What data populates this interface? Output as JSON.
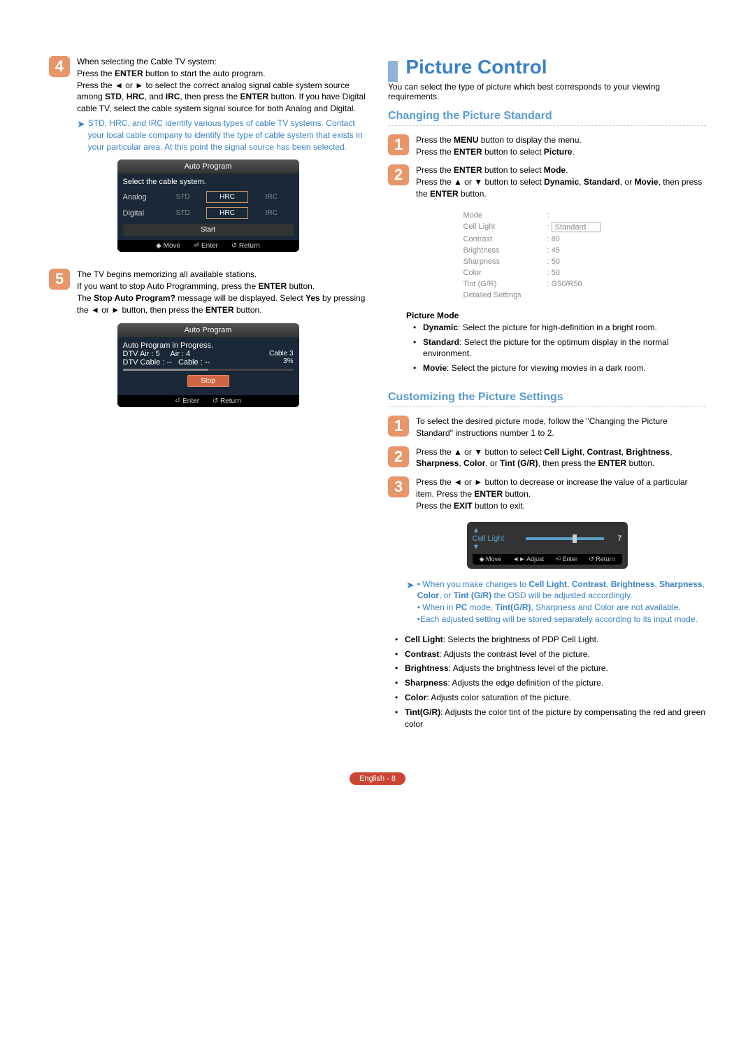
{
  "left": {
    "step4": {
      "num": "4",
      "p1a": "When selecting the Cable TV system:",
      "p1b": "Press the ",
      "enter": "ENTER",
      "p1c": " button to start the auto program.",
      "p2a": "Press the ◄ or ► to select the correct analog signal cable system source among ",
      "std": "STD",
      "hrc": "HRC",
      "p2and": ", and ",
      "irc": "IRC",
      "p2b": ", then press the ",
      "p2c": " button. If you have Digital cable TV, select the cable system signal source for both Analog and Digital.",
      "note": "STD, HRC, and IRC identify various types of cable TV systems. Contact your local cable company to identify the type of cable system that exists in your particular area. At this point the signal source has been selected."
    },
    "ui1": {
      "title": "Auto Program",
      "subtitle": "Select the cable system.",
      "row1": "Analog",
      "row2": "Digital",
      "std": "STD",
      "hrc": "HRC",
      "irc": "IRC",
      "start": "Start",
      "footer": {
        "move": "◆ Move",
        "enter": "⏎ Enter",
        "return": "↺ Return"
      }
    },
    "step5": {
      "num": "5",
      "p1": "The TV begins memorizing all available stations.",
      "p2a": "If you want to stop Auto Programming, press the ",
      "p2b": " button.",
      "p3a": "The ",
      "stopmsg": "Stop Auto Program?",
      "p3b": " message will be displayed. Select ",
      "yes": "Yes",
      "p3c": " by pressing the ◄ or ► button, then press the ",
      "p3d": " button."
    },
    "ui2": {
      "title": "Auto Program",
      "l1": "Auto Program in Progress.",
      "l2a": "DTV Air : 5",
      "l2b": "Air : 4",
      "l3a": "DTV Cable : --",
      "l3b": "Cable : --",
      "r1": "Cable 3",
      "r2": "3%",
      "stop": "Stop",
      "footer": {
        "enter": "⏎ Enter",
        "return": "↺ Return"
      }
    }
  },
  "right": {
    "title": "Picture Control",
    "intro": "You can select the type of picture which best corresponds to your viewing requirements.",
    "sec1": {
      "heading": "Changing the Picture Standard",
      "s1": {
        "num": "1",
        "a": "Press the ",
        "menu": "MENU",
        "b": " button to display the menu.",
        "c": "Press the ",
        "enter": "ENTER",
        "d": " button to select ",
        "picture": "Picture",
        "e": "."
      },
      "s2": {
        "num": "2",
        "a": "Press the ",
        "enter": "ENTER",
        "b": " button to select ",
        "mode": "Mode",
        "dot": ".",
        "c": "Press the ▲ or ▼ button to select ",
        "dyn": "Dynamic",
        "comma": ", ",
        "std": "Standard",
        "or": ", or ",
        "mov": "Movie",
        "d": ", then press the ",
        "e": " button."
      }
    },
    "settings": {
      "rows": [
        {
          "k": "Mode",
          "v": ":"
        },
        {
          "k": "Cell Light",
          "v": ": Standard",
          "sel": true
        },
        {
          "k": "Contrast",
          "v": ": 80"
        },
        {
          "k": "Brightness",
          "v": ": 45"
        },
        {
          "k": "Sharpness",
          "v": ": 50"
        },
        {
          "k": "Color",
          "v": ": 50"
        },
        {
          "k": "Tint (G/R)",
          "v": ": G50/R50"
        },
        {
          "k": "Detailed Settings",
          "v": ""
        }
      ]
    },
    "pmode": {
      "heading": "Picture Mode",
      "items": [
        {
          "b": "Dynamic",
          "t": ": Select the picture for high-definition in a bright room."
        },
        {
          "b": "Standard",
          "t": ": Select the picture for the optimum display in the normal environment."
        },
        {
          "b": "Movie",
          "t": ": Select the picture for viewing movies in a dark room."
        }
      ]
    },
    "sec2": {
      "heading": "Customizing the Picture Settings",
      "s1": {
        "num": "1",
        "t": "To select the desired picture mode, follow the \"Changing the Picture Standard\" instructions number 1 to 2."
      },
      "s2": {
        "num": "2",
        "a": "Press the ▲ or ▼ button to select ",
        "cell": "Cell Light",
        "c": ", ",
        "con": "Contrast",
        "br": "Brightness",
        "sh": "Sharpness",
        "col": "Color",
        "or": ", or ",
        "tint": "Tint (G/R)",
        "b": ", then press the ",
        "enter": "ENTER",
        "d": " button."
      },
      "s3": {
        "num": "3",
        "a": "Press the ◄ or ► button to decrease or increase the value of a particular item. Press the ",
        "enter": "ENTER",
        "b": " button.",
        "c": "Press the ",
        "exit": "EXIT",
        "d": " button to exit."
      }
    },
    "adjust": {
      "label": "Cell Light",
      "value": "7",
      "footer": {
        "move": "◆ Move",
        "adj": "◄► Adjust",
        "enter": "⏎ Enter",
        "ret": "↺ Return"
      }
    },
    "notes": {
      "l1a": "When you make changes to ",
      "l1b": "Cell Light",
      "l1c": ", ",
      "l1d": "Contrast",
      "l1e": "Brightness",
      "l1f": "Sharpness",
      "l1g": "Color",
      "l1h": ", or ",
      "l1i": "Tint (G/R)",
      "l1j": " the OSD will be adjusted accordingly.",
      "l2a": "When in ",
      "l2b": "PC",
      "l2c": " mode, ",
      "l2d": "Tint(G/R)",
      "l2e": ", Sharpness and Color are not available.",
      "l3": "Each adjusted setting will be stored separately according to its input mode."
    },
    "defs": [
      {
        "b": "Cell Light",
        "t": ": Selects the brightness of PDP Cell Light."
      },
      {
        "b": "Contrast",
        "t": ": Adjusts the contrast level of the picture."
      },
      {
        "b": "Brightness",
        "t": ": Adjusts the brightness level of the picture."
      },
      {
        "b": "Sharpness",
        "t": ": Adjusts the edge definition of the picture."
      },
      {
        "b": "Color",
        "t": ": Adjusts color saturation of the picture."
      },
      {
        "b": "Tint(G/R)",
        "t": ": Adjusts the color tint of the picture by compensating the red and green color"
      }
    ]
  },
  "footer": "English - 8"
}
